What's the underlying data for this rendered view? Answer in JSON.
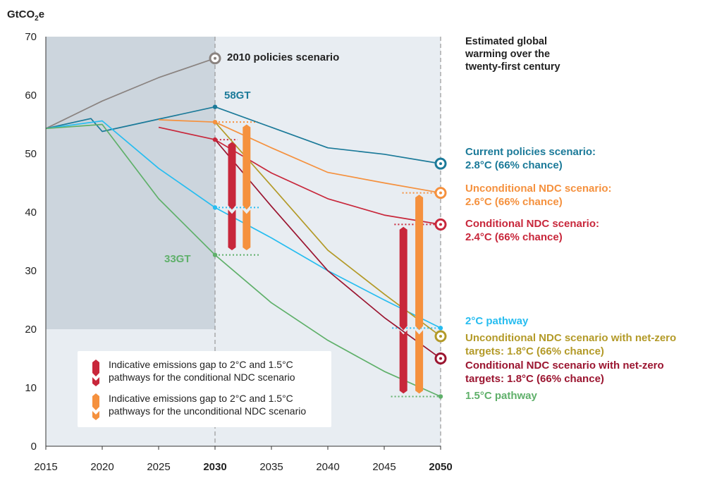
{
  "chart_data": {
    "type": "line",
    "y_unit_prefix": "GtCO",
    "y_unit_sub": "2",
    "y_unit_suffix": "e",
    "side_title": [
      "Estimated global",
      "warming over the",
      "twenty-first century"
    ],
    "xlim": [
      2015,
      2050
    ],
    "ylim": [
      0,
      70
    ],
    "x_ticks": [
      2015,
      2020,
      2025,
      2030,
      2035,
      2040,
      2045,
      2050
    ],
    "x_ticks_bold": [
      2030,
      2050
    ],
    "y_ticks": [
      0,
      10,
      20,
      30,
      40,
      50,
      60,
      70
    ],
    "historical_shading": {
      "x": [
        2015,
        2030
      ],
      "y_lower": 20
    },
    "series": [
      {
        "name": "2010 policies scenario",
        "color": "#8a8380",
        "points": [
          [
            2015,
            54.3
          ],
          [
            2020,
            59.0
          ],
          [
            2025,
            63.0
          ],
          [
            2030,
            66.3
          ]
        ]
      },
      {
        "name": "Current policies scenario",
        "color": "#1b7a99",
        "points": [
          [
            2015,
            54.3
          ],
          [
            2019,
            56.0
          ],
          [
            2020,
            53.8
          ],
          [
            2025,
            55.9
          ],
          [
            2030,
            58.0
          ],
          [
            2035,
            54.5
          ],
          [
            2040,
            51.0
          ],
          [
            2045,
            49.9
          ],
          [
            2050,
            48.3
          ]
        ]
      },
      {
        "name": "Unconditional NDC scenario",
        "color": "#f5913e",
        "points": [
          [
            2025,
            55.8
          ],
          [
            2030,
            55.4
          ],
          [
            2035,
            51.0
          ],
          [
            2040,
            46.8
          ],
          [
            2045,
            45.0
          ],
          [
            2050,
            43.3
          ]
        ]
      },
      {
        "name": "Conditional NDC scenario",
        "color": "#c8273b",
        "points": [
          [
            2025,
            54.5
          ],
          [
            2030,
            52.4
          ],
          [
            2035,
            46.7
          ],
          [
            2040,
            42.3
          ],
          [
            2045,
            39.5
          ],
          [
            2050,
            37.9
          ]
        ]
      },
      {
        "name": "2°C pathway",
        "color": "#27bdf0",
        "points": [
          [
            2015,
            54.3
          ],
          [
            2020,
            55.6
          ],
          [
            2025,
            47.5
          ],
          [
            2030,
            40.8
          ],
          [
            2035,
            35.6
          ],
          [
            2040,
            30.0
          ],
          [
            2045,
            25.0
          ],
          [
            2050,
            20.2
          ]
        ]
      },
      {
        "name": "Unconditional NDC scenario with net-zero targets",
        "color": "#b39a28",
        "points": [
          [
            2030,
            55.4
          ],
          [
            2035,
            44.5
          ],
          [
            2040,
            33.5
          ],
          [
            2045,
            26.0
          ],
          [
            2050,
            18.8
          ]
        ]
      },
      {
        "name": "Conditional NDC scenario with net-zero targets",
        "color": "#9b1530",
        "points": [
          [
            2030,
            52.4
          ],
          [
            2035,
            41.0
          ],
          [
            2040,
            30.0
          ],
          [
            2045,
            22.0
          ],
          [
            2050,
            15.0
          ]
        ]
      },
      {
        "name": "1.5°C pathway",
        "color": "#5fb06a",
        "points": [
          [
            2015,
            54.3
          ],
          [
            2020,
            55.0
          ],
          [
            2025,
            42.3
          ],
          [
            2030,
            32.7
          ],
          [
            2035,
            24.5
          ],
          [
            2040,
            18.1
          ],
          [
            2045,
            12.8
          ],
          [
            2050,
            8.5
          ]
        ]
      }
    ],
    "series_labels": [
      {
        "lines": [
          "2010 policies scenario"
        ],
        "color": "#222222"
      },
      {
        "lines": [
          "Current policies scenario:",
          "2.8°C (66% chance)"
        ],
        "color": "#1b7a99"
      },
      {
        "lines": [
          "Unconditional NDC scenario:",
          "2.6°C (66% chance)"
        ],
        "color": "#f5913e"
      },
      {
        "lines": [
          "Conditional NDC scenario:",
          "2.4°C (66% chance)"
        ],
        "color": "#c8273b"
      },
      {
        "lines": [
          "2°C pathway"
        ],
        "color": "#27bdf0"
      },
      {
        "lines": [
          "Unconditional NDC scenario with net-zero",
          "targets: 1.8°C (66% chance)"
        ],
        "color": "#b39a28"
      },
      {
        "lines": [
          "Conditional NDC scenario with net-zero",
          "targets: 1.8°C (66% chance)"
        ],
        "color": "#9b1530"
      },
      {
        "lines": [
          "1.5°C pathway"
        ],
        "color": "#5fb06a"
      }
    ],
    "annotations": [
      {
        "text": "58GT",
        "color": "#1b7a99"
      },
      {
        "text": "33GT",
        "color": "#5fb06a"
      }
    ],
    "gap_bars": [
      {
        "x": 2031.5,
        "top": 52.0,
        "bottom": 33.5,
        "mid": 40.8,
        "color": "#c8273b"
      },
      {
        "x": 2032.8,
        "top": 55.0,
        "bottom": 33.5,
        "mid": 40.8,
        "color": "#f5913e"
      },
      {
        "x": 2046.7,
        "top": 37.5,
        "bottom": 9.0,
        "mid": 20.2,
        "color": "#c8273b"
      },
      {
        "x": 2048.1,
        "top": 43.0,
        "bottom": 9.0,
        "mid": 20.2,
        "color": "#f5913e"
      }
    ],
    "legend": {
      "placement": "bottom-left",
      "items": [
        {
          "lines": [
            "Indicative emissions gap to 2°C and 1.5°C",
            "pathways for the conditional NDC scenario"
          ],
          "color": "#c8273b"
        },
        {
          "lines": [
            "Indicative emissions gap to 2°C and 1.5°C",
            "pathways for the unconditional NDC scenario"
          ],
          "color": "#f5913e"
        }
      ]
    }
  }
}
